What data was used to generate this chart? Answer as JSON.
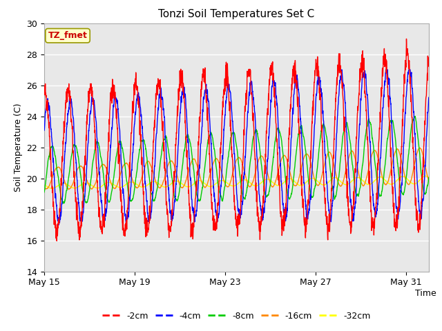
{
  "title": "Tonzi Soil Temperatures Set C",
  "xlabel": "Time",
  "ylabel": "Soil Temperature (C)",
  "annotation": "TZ_fmet",
  "ylim": [
    14,
    30
  ],
  "yticks": [
    14,
    16,
    18,
    20,
    22,
    24,
    26,
    28,
    30
  ],
  "xtick_labels": [
    "May 15",
    "May 19",
    "May 23",
    "May 27",
    "May 31"
  ],
  "xtick_positions": [
    0,
    4,
    8,
    12,
    16
  ],
  "legend_labels": [
    "-2cm",
    "-4cm",
    "-8cm",
    "-16cm",
    "-32cm"
  ],
  "line_colors": [
    "#ff0000",
    "#0000ff",
    "#00cc00",
    "#ff8800",
    "#ffff00"
  ],
  "bg_color": "#e8e8e8",
  "fig_bg": "#ffffff",
  "n_days": 17,
  "points_per_day": 144,
  "seed": 42
}
